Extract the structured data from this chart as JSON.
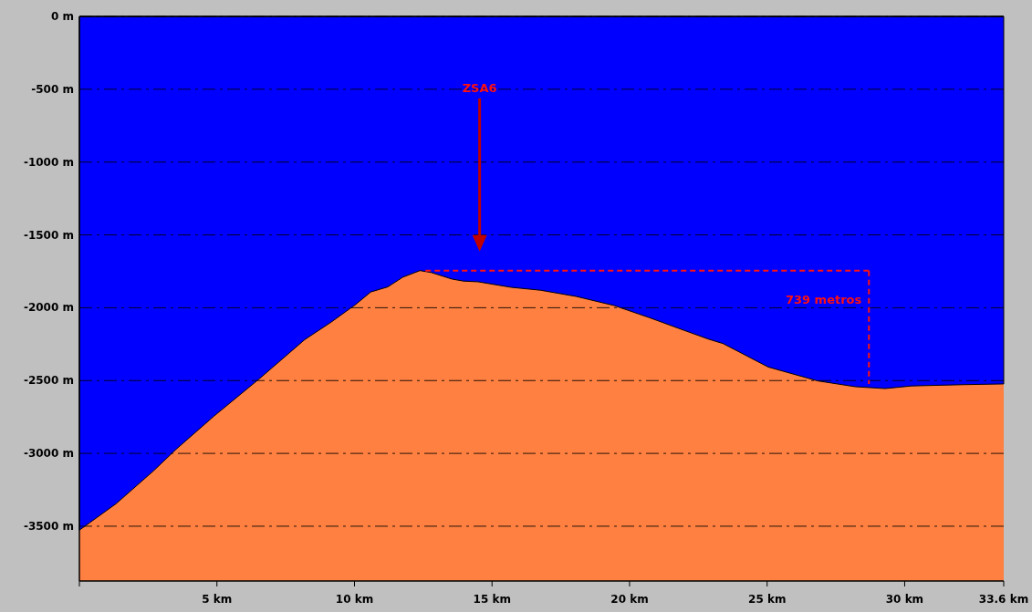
{
  "chart_data": {
    "type": "area",
    "x": [
      0,
      1.33,
      2.7,
      3.52,
      4.9,
      6.54,
      8.19,
      9.15,
      10.04,
      10.59,
      11.21,
      11.76,
      12.38,
      12.79,
      13.54,
      13.96,
      14.5,
      15.7,
      16.77,
      18.05,
      19.44,
      20.72,
      21.79,
      22.86,
      23.4,
      25.04,
      26.83,
      28.2,
      29.29,
      30.25,
      32.17,
      33.6
    ],
    "series": [
      {
        "color": "#0000ff",
        "values": [
          -3527,
          -3346,
          -3119,
          -2971,
          -2743,
          -2488,
          -2219,
          -2099,
          -1978,
          -1892,
          -1857,
          -1790,
          -1745,
          -1758,
          -1803,
          -1817,
          -1822,
          -1860,
          -1880,
          -1922,
          -1985,
          -2068,
          -2142,
          -2215,
          -2246,
          -2407,
          -2502,
          -2542,
          -2555,
          -2537,
          -2528,
          -2523
        ]
      }
    ],
    "xlim": [
      0,
      33.6
    ],
    "xticks": [
      {
        "value": 0,
        "label": null
      },
      {
        "value": 5,
        "label": "5 km"
      },
      {
        "value": 10,
        "label": "10 km"
      },
      {
        "value": 15,
        "label": "15 km"
      },
      {
        "value": 20,
        "label": "20 km"
      },
      {
        "value": 25,
        "label": "25 km"
      },
      {
        "value": 30,
        "label": "30 km"
      },
      {
        "value": 33.6,
        "label": "33.6 km"
      }
    ],
    "ylim": [
      -3876,
      0
    ],
    "yticks": [
      {
        "value": 0,
        "label": "0 m"
      },
      {
        "value": -500,
        "label": "-500 m"
      },
      {
        "value": -1000,
        "label": "-1000 m"
      },
      {
        "value": -1500,
        "label": "-1500 m"
      },
      {
        "value": -2000,
        "label": "-2000 m"
      },
      {
        "value": -2500,
        "label": "-2500 m"
      },
      {
        "value": -3000,
        "label": "-3000 m"
      },
      {
        "value": -3500,
        "label": "-3500 m"
      }
    ],
    "grid": "y",
    "bands": [
      {
        "axis": "y",
        "from": -3876,
        "to": 0,
        "color": "#ff8040"
      }
    ],
    "ref_lines": [
      {
        "axis": "y",
        "value": -1745,
        "color": "#ff1010",
        "line_style": "dashed"
      },
      {
        "axis": "x",
        "value": 28.7,
        "label": "739 metros",
        "color": "#ff1010",
        "line_style": "dashed"
      }
    ],
    "annotations": [
      "ZSA6"
    ]
  }
}
